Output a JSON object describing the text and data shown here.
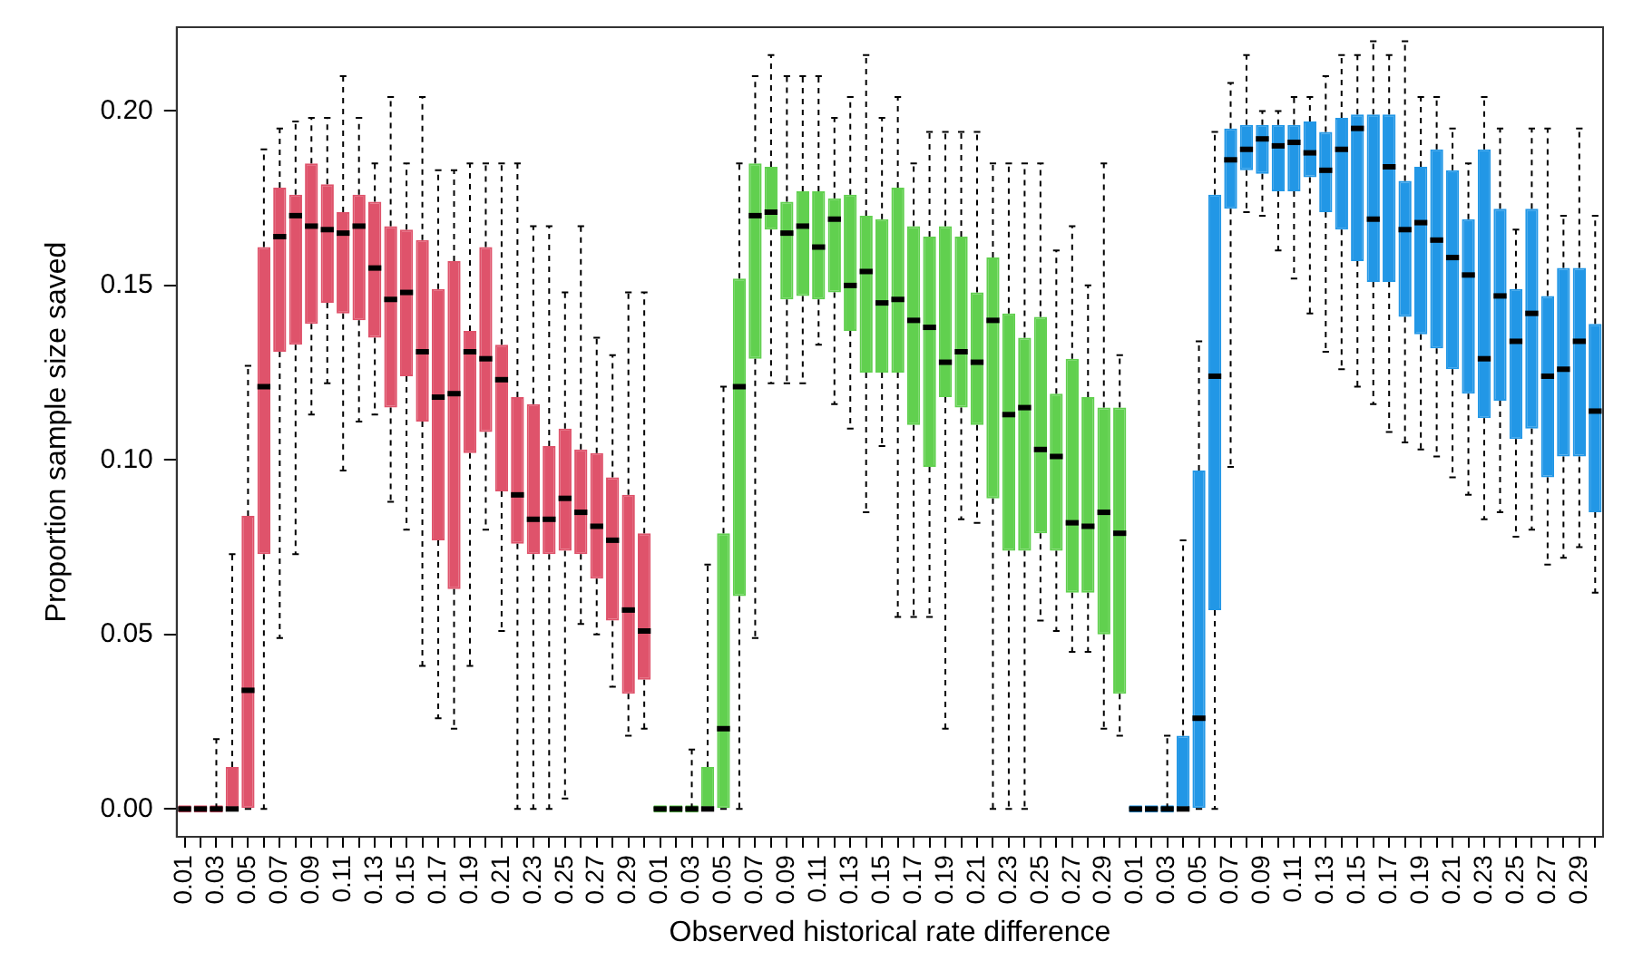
{
  "chart_data": {
    "type": "box",
    "xlabel": "Observed historical rate difference",
    "ylabel": "Proportion sample size saved",
    "categories": [
      "0.01",
      null,
      "0.03",
      null,
      "0.05",
      null,
      "0.07",
      null,
      "0.09",
      null,
      "0.11",
      null,
      "0.13",
      null,
      "0.15",
      null,
      "0.17",
      null,
      "0.19",
      null,
      "0.21",
      null,
      "0.23",
      null,
      "0.25",
      null,
      "0.27",
      null,
      "0.29",
      null,
      "0.01",
      null,
      "0.03",
      null,
      "0.05",
      null,
      "0.07",
      null,
      "0.09",
      null,
      "0.11",
      null,
      "0.13",
      null,
      "0.15",
      null,
      "0.17",
      null,
      "0.19",
      null,
      "0.21",
      null,
      "0.23",
      null,
      "0.25",
      null,
      "0.27",
      null,
      "0.29",
      null,
      "0.01",
      null,
      "0.03",
      null,
      "0.05",
      null,
      "0.07",
      null,
      "0.09",
      null,
      "0.11",
      null,
      "0.13",
      null,
      "0.15",
      null,
      "0.17",
      null,
      "0.19",
      null,
      "0.21",
      null,
      "0.23",
      null,
      "0.25",
      null,
      "0.27",
      null,
      "0.29",
      null
    ],
    "ylim": [
      -0.008,
      0.224
    ],
    "yticks": [
      {
        "value": 0,
        "label": "0.00"
      },
      {
        "value": 0.05,
        "label": "0.05"
      },
      {
        "value": 0.1,
        "label": "0.10"
      },
      {
        "value": 0.15,
        "label": "0.15"
      },
      {
        "value": 0.2,
        "label": "0.20"
      }
    ],
    "grid": false,
    "legend": false,
    "series": [
      {
        "color": "#df536b",
        "boxes": [
          {
            "low": 0,
            "q1": 0,
            "median": 0,
            "q3": 0,
            "high": 0
          },
          {
            "low": 0,
            "q1": 0,
            "median": 0,
            "q3": 0,
            "high": 0
          },
          {
            "low": 0,
            "q1": 0,
            "median": 0,
            "q3": 0,
            "high": 0.02
          },
          {
            "low": 0,
            "q1": 0,
            "median": 0,
            "q3": 0.012,
            "high": 0.073
          },
          {
            "low": 0,
            "q1": 0,
            "median": 0.034,
            "q3": 0.084,
            "high": 0.127
          },
          {
            "low": 0,
            "q1": 0.073,
            "median": 0.121,
            "q3": 0.161,
            "high": 0.189
          },
          {
            "low": 0.049,
            "q1": 0.131,
            "median": 0.164,
            "q3": 0.178,
            "high": 0.195
          },
          {
            "low": 0.073,
            "q1": 0.133,
            "median": 0.17,
            "q3": 0.176,
            "high": 0.197
          },
          {
            "low": 0.113,
            "q1": 0.139,
            "median": 0.167,
            "q3": 0.185,
            "high": 0.198
          },
          {
            "low": 0.122,
            "q1": 0.145,
            "median": 0.166,
            "q3": 0.179,
            "high": 0.198
          },
          {
            "low": 0.097,
            "q1": 0.142,
            "median": 0.165,
            "q3": 0.171,
            "high": 0.21
          },
          {
            "low": 0.111,
            "q1": 0.14,
            "median": 0.167,
            "q3": 0.176,
            "high": 0.198
          },
          {
            "low": 0.113,
            "q1": 0.135,
            "median": 0.155,
            "q3": 0.174,
            "high": 0.185
          },
          {
            "low": 0.088,
            "q1": 0.115,
            "median": 0.146,
            "q3": 0.167,
            "high": 0.204
          },
          {
            "low": 0.08,
            "q1": 0.124,
            "median": 0.148,
            "q3": 0.166,
            "high": 0.185
          },
          {
            "low": 0.041,
            "q1": 0.111,
            "median": 0.131,
            "q3": 0.163,
            "high": 0.204
          },
          {
            "low": 0.026,
            "q1": 0.077,
            "median": 0.118,
            "q3": 0.149,
            "high": 0.183
          },
          {
            "low": 0.023,
            "q1": 0.063,
            "median": 0.119,
            "q3": 0.157,
            "high": 0.183
          },
          {
            "low": 0.041,
            "q1": 0.102,
            "median": 0.131,
            "q3": 0.137,
            "high": 0.185
          },
          {
            "low": 0.08,
            "q1": 0.108,
            "median": 0.129,
            "q3": 0.161,
            "high": 0.185
          },
          {
            "low": 0.051,
            "q1": 0.091,
            "median": 0.123,
            "q3": 0.133,
            "high": 0.185
          },
          {
            "low": 0,
            "q1": 0.076,
            "median": 0.09,
            "q3": 0.118,
            "high": 0.185
          },
          {
            "low": 0,
            "q1": 0.073,
            "median": 0.083,
            "q3": 0.116,
            "high": 0.167
          },
          {
            "low": 0,
            "q1": 0.073,
            "median": 0.083,
            "q3": 0.104,
            "high": 0.167
          },
          {
            "low": 0.003,
            "q1": 0.074,
            "median": 0.089,
            "q3": 0.109,
            "high": 0.148
          },
          {
            "low": 0.053,
            "q1": 0.073,
            "median": 0.085,
            "q3": 0.103,
            "high": 0.167
          },
          {
            "low": 0.05,
            "q1": 0.066,
            "median": 0.081,
            "q3": 0.102,
            "high": 0.135
          },
          {
            "low": 0.035,
            "q1": 0.054,
            "median": 0.077,
            "q3": 0.095,
            "high": 0.13
          },
          {
            "low": 0.021,
            "q1": 0.033,
            "median": 0.057,
            "q3": 0.09,
            "high": 0.148
          },
          {
            "low": 0.023,
            "q1": 0.037,
            "median": 0.051,
            "q3": 0.079,
            "high": 0.148
          },
          null,
          null,
          null,
          null,
          null,
          null,
          null,
          null,
          null,
          null,
          null,
          null,
          null,
          null,
          null,
          null,
          null,
          null,
          null,
          null,
          null,
          null,
          null,
          null,
          null,
          null,
          null,
          null,
          null,
          null,
          null,
          null,
          null,
          null,
          null,
          null,
          null,
          null,
          null,
          null,
          null,
          null,
          null,
          null,
          null,
          null,
          null,
          null,
          null,
          null,
          null,
          null,
          null,
          null,
          null,
          null,
          null,
          null,
          null,
          null
        ]
      },
      {
        "color": "#61d04f",
        "boxes": [
          null,
          null,
          null,
          null,
          null,
          null,
          null,
          null,
          null,
          null,
          null,
          null,
          null,
          null,
          null,
          null,
          null,
          null,
          null,
          null,
          null,
          null,
          null,
          null,
          null,
          null,
          null,
          null,
          null,
          null,
          {
            "low": 0,
            "q1": 0,
            "median": 0,
            "q3": 0,
            "high": 0
          },
          {
            "low": 0,
            "q1": 0,
            "median": 0,
            "q3": 0,
            "high": 0
          },
          {
            "low": 0,
            "q1": 0,
            "median": 0,
            "q3": 0,
            "high": 0.017
          },
          {
            "low": 0,
            "q1": 0,
            "median": 0,
            "q3": 0.012,
            "high": 0.07
          },
          {
            "low": 0,
            "q1": 0,
            "median": 0.023,
            "q3": 0.079,
            "high": 0.121
          },
          {
            "low": 0,
            "q1": 0.061,
            "median": 0.121,
            "q3": 0.152,
            "high": 0.185
          },
          {
            "low": 0.049,
            "q1": 0.129,
            "median": 0.17,
            "q3": 0.185,
            "high": 0.21
          },
          {
            "low": 0.122,
            "q1": 0.166,
            "median": 0.171,
            "q3": 0.184,
            "high": 0.216
          },
          {
            "low": 0.122,
            "q1": 0.146,
            "median": 0.165,
            "q3": 0.174,
            "high": 0.21
          },
          {
            "low": 0.122,
            "q1": 0.147,
            "median": 0.167,
            "q3": 0.177,
            "high": 0.21
          },
          {
            "low": 0.133,
            "q1": 0.146,
            "median": 0.161,
            "q3": 0.177,
            "high": 0.21
          },
          {
            "low": 0.116,
            "q1": 0.148,
            "median": 0.169,
            "q3": 0.175,
            "high": 0.198
          },
          {
            "low": 0.109,
            "q1": 0.137,
            "median": 0.15,
            "q3": 0.176,
            "high": 0.204
          },
          {
            "low": 0.085,
            "q1": 0.125,
            "median": 0.154,
            "q3": 0.17,
            "high": 0.216
          },
          {
            "low": 0.104,
            "q1": 0.125,
            "median": 0.145,
            "q3": 0.169,
            "high": 0.198
          },
          {
            "low": 0.055,
            "q1": 0.125,
            "median": 0.146,
            "q3": 0.178,
            "high": 0.204
          },
          {
            "low": 0.055,
            "q1": 0.11,
            "median": 0.14,
            "q3": 0.167,
            "high": 0.185
          },
          {
            "low": 0.055,
            "q1": 0.098,
            "median": 0.138,
            "q3": 0.164,
            "high": 0.194
          },
          {
            "low": 0.023,
            "q1": 0.118,
            "median": 0.128,
            "q3": 0.167,
            "high": 0.194
          },
          {
            "low": 0.083,
            "q1": 0.115,
            "median": 0.131,
            "q3": 0.164,
            "high": 0.194
          },
          {
            "low": 0.082,
            "q1": 0.11,
            "median": 0.128,
            "q3": 0.148,
            "high": 0.194
          },
          {
            "low": 0,
            "q1": 0.089,
            "median": 0.14,
            "q3": 0.158,
            "high": 0.185
          },
          {
            "low": 0,
            "q1": 0.074,
            "median": 0.113,
            "q3": 0.142,
            "high": 0.185
          },
          {
            "low": 0,
            "q1": 0.074,
            "median": 0.115,
            "q3": 0.135,
            "high": 0.185
          },
          {
            "low": 0.054,
            "q1": 0.079,
            "median": 0.103,
            "q3": 0.141,
            "high": 0.185
          },
          {
            "low": 0.051,
            "q1": 0.074,
            "median": 0.101,
            "q3": 0.119,
            "high": 0.16
          },
          {
            "low": 0.045,
            "q1": 0.062,
            "median": 0.082,
            "q3": 0.129,
            "high": 0.167
          },
          {
            "low": 0.045,
            "q1": 0.062,
            "median": 0.081,
            "q3": 0.118,
            "high": 0.15
          },
          {
            "low": 0.023,
            "q1": 0.05,
            "median": 0.085,
            "q3": 0.115,
            "high": 0.185
          },
          {
            "low": 0.021,
            "q1": 0.033,
            "median": 0.079,
            "q3": 0.115,
            "high": 0.13
          },
          null,
          null,
          null,
          null,
          null,
          null,
          null,
          null,
          null,
          null,
          null,
          null,
          null,
          null,
          null,
          null,
          null,
          null,
          null,
          null,
          null,
          null,
          null,
          null,
          null,
          null,
          null,
          null,
          null,
          null
        ]
      },
      {
        "color": "#2297e6",
        "boxes": [
          null,
          null,
          null,
          null,
          null,
          null,
          null,
          null,
          null,
          null,
          null,
          null,
          null,
          null,
          null,
          null,
          null,
          null,
          null,
          null,
          null,
          null,
          null,
          null,
          null,
          null,
          null,
          null,
          null,
          null,
          null,
          null,
          null,
          null,
          null,
          null,
          null,
          null,
          null,
          null,
          null,
          null,
          null,
          null,
          null,
          null,
          null,
          null,
          null,
          null,
          null,
          null,
          null,
          null,
          null,
          null,
          null,
          null,
          null,
          null,
          {
            "low": 0,
            "q1": 0,
            "median": 0,
            "q3": 0,
            "high": 0
          },
          {
            "low": 0,
            "q1": 0,
            "median": 0,
            "q3": 0,
            "high": 0
          },
          {
            "low": 0,
            "q1": 0,
            "median": 0,
            "q3": 0,
            "high": 0.021
          },
          {
            "low": 0,
            "q1": 0,
            "median": 0,
            "q3": 0.021,
            "high": 0.077
          },
          {
            "low": 0,
            "q1": 0,
            "median": 0.026,
            "q3": 0.097,
            "high": 0.134
          },
          {
            "low": 0,
            "q1": 0.057,
            "median": 0.124,
            "q3": 0.176,
            "high": 0.194
          },
          {
            "low": 0.098,
            "q1": 0.172,
            "median": 0.186,
            "q3": 0.195,
            "high": 0.208
          },
          {
            "low": 0.171,
            "q1": 0.183,
            "median": 0.189,
            "q3": 0.196,
            "high": 0.216
          },
          {
            "low": 0.17,
            "q1": 0.182,
            "median": 0.192,
            "q3": 0.196,
            "high": 0.2
          },
          {
            "low": 0.16,
            "q1": 0.177,
            "median": 0.19,
            "q3": 0.196,
            "high": 0.2
          },
          {
            "low": 0.152,
            "q1": 0.177,
            "median": 0.191,
            "q3": 0.196,
            "high": 0.204
          },
          {
            "low": 0.142,
            "q1": 0.181,
            "median": 0.188,
            "q3": 0.197,
            "high": 0.204
          },
          {
            "low": 0.131,
            "q1": 0.171,
            "median": 0.183,
            "q3": 0.194,
            "high": 0.21
          },
          {
            "low": 0.126,
            "q1": 0.166,
            "median": 0.189,
            "q3": 0.198,
            "high": 0.216
          },
          {
            "low": 0.121,
            "q1": 0.157,
            "median": 0.195,
            "q3": 0.199,
            "high": 0.216
          },
          {
            "low": 0.116,
            "q1": 0.151,
            "median": 0.169,
            "q3": 0.199,
            "high": 0.22
          },
          {
            "low": 0.108,
            "q1": 0.151,
            "median": 0.184,
            "q3": 0.199,
            "high": 0.216
          },
          {
            "low": 0.105,
            "q1": 0.141,
            "median": 0.166,
            "q3": 0.18,
            "high": 0.22
          },
          {
            "low": 0.103,
            "q1": 0.136,
            "median": 0.168,
            "q3": 0.184,
            "high": 0.204
          },
          {
            "low": 0.101,
            "q1": 0.132,
            "median": 0.163,
            "q3": 0.189,
            "high": 0.204
          },
          {
            "low": 0.095,
            "q1": 0.126,
            "median": 0.158,
            "q3": 0.183,
            "high": 0.195
          },
          {
            "low": 0.09,
            "q1": 0.119,
            "median": 0.153,
            "q3": 0.169,
            "high": 0.185
          },
          {
            "low": 0.083,
            "q1": 0.112,
            "median": 0.129,
            "q3": 0.189,
            "high": 0.204
          },
          {
            "low": 0.085,
            "q1": 0.117,
            "median": 0.147,
            "q3": 0.172,
            "high": 0.195
          },
          {
            "low": 0.078,
            "q1": 0.106,
            "median": 0.134,
            "q3": 0.149,
            "high": 0.166
          },
          {
            "low": 0.08,
            "q1": 0.109,
            "median": 0.142,
            "q3": 0.172,
            "high": 0.195
          },
          {
            "low": 0.07,
            "q1": 0.095,
            "median": 0.124,
            "q3": 0.147,
            "high": 0.195
          },
          {
            "low": 0.072,
            "q1": 0.101,
            "median": 0.126,
            "q3": 0.155,
            "high": 0.17
          },
          {
            "low": 0.075,
            "q1": 0.101,
            "median": 0.134,
            "q3": 0.155,
            "high": 0.195
          },
          {
            "low": 0.062,
            "q1": 0.085,
            "median": 0.114,
            "q3": 0.139,
            "high": 0.17
          }
        ]
      }
    ]
  }
}
